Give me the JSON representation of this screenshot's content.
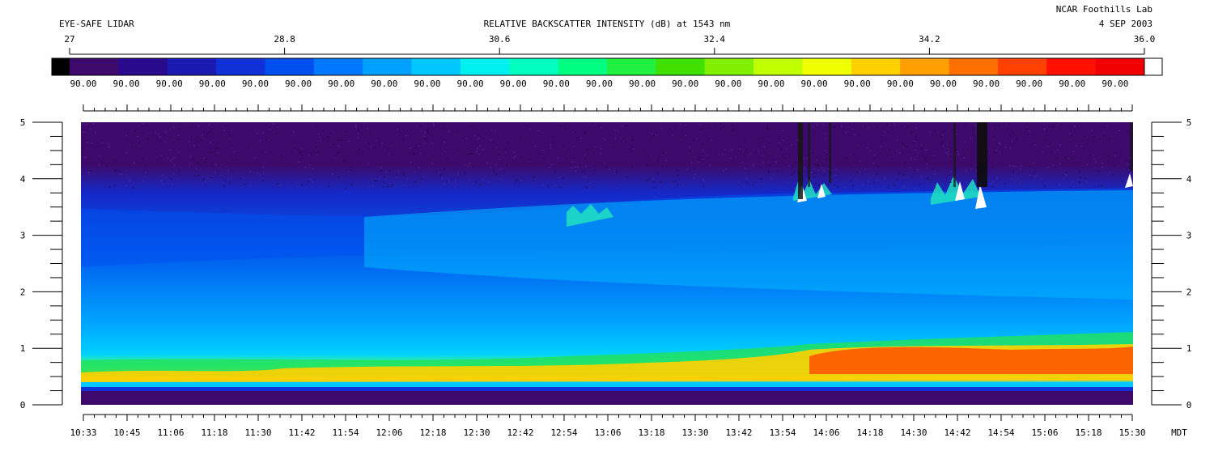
{
  "header": {
    "instrument": "EYE-SAFE LIDAR",
    "title": "RELATIVE BACKSCATTER INTENSITY (dB) at 1543 nm",
    "site": "NCAR Foothills Lab",
    "date": "4 SEP 2003"
  },
  "colorbar": {
    "min_label": "27",
    "max_label": "36.0",
    "major_ticks": [
      "27",
      "28.8",
      "30.6",
      "32.4",
      "34.2",
      "36.0"
    ],
    "sublabels": [
      "90.00",
      "90.00",
      "90.00",
      "90.00",
      "90.00",
      "90.00",
      "90.00",
      "90.00",
      "90.00",
      "90.00",
      "90.00",
      "90.00",
      "90.00",
      "90.00",
      "90.00",
      "90.00",
      "90.00",
      "90.00",
      "90.00",
      "90.00",
      "90.00",
      "90.00",
      "90.00",
      "90.00",
      "90.00"
    ],
    "colors": [
      "#3d0a6b",
      "#2a0a8c",
      "#1a1ab0",
      "#1030d8",
      "#0050f0",
      "#0078ff",
      "#00a0ff",
      "#00c8ff",
      "#00f0f0",
      "#00ffc0",
      "#00ff80",
      "#20f040",
      "#40e000",
      "#80f000",
      "#c0ff00",
      "#f0ff00",
      "#ffd000",
      "#ffa000",
      "#ff7000",
      "#ff4000",
      "#ff1000",
      "#f00000"
    ]
  },
  "chart_data": {
    "type": "heatmap",
    "title": "RELATIVE BACKSCATTER INTENSITY (dB) at 1543 nm",
    "xlabel": "MDT",
    "ylabel": "",
    "x_ticks": [
      "10:33",
      "10:45",
      "11:06",
      "11:18",
      "11:30",
      "11:42",
      "11:54",
      "12:06",
      "12:18",
      "12:30",
      "12:42",
      "12:54",
      "13:06",
      "13:18",
      "13:30",
      "13:42",
      "13:54",
      "14:06",
      "14:18",
      "14:30",
      "14:42",
      "14:54",
      "15:06",
      "15:18",
      "15:30"
    ],
    "y_ticks": [
      0,
      1,
      2,
      3,
      4,
      5
    ],
    "ylim": [
      0,
      5
    ],
    "color_range": [
      27,
      36.0
    ],
    "layers": {
      "boundary_layer_top_km": [
        0.55,
        0.6,
        0.75,
        0.85,
        1.1,
        1.2
      ],
      "aerosol_top_km": [
        3.4,
        3.4,
        3.5,
        3.6,
        3.8,
        3.9
      ]
    }
  }
}
